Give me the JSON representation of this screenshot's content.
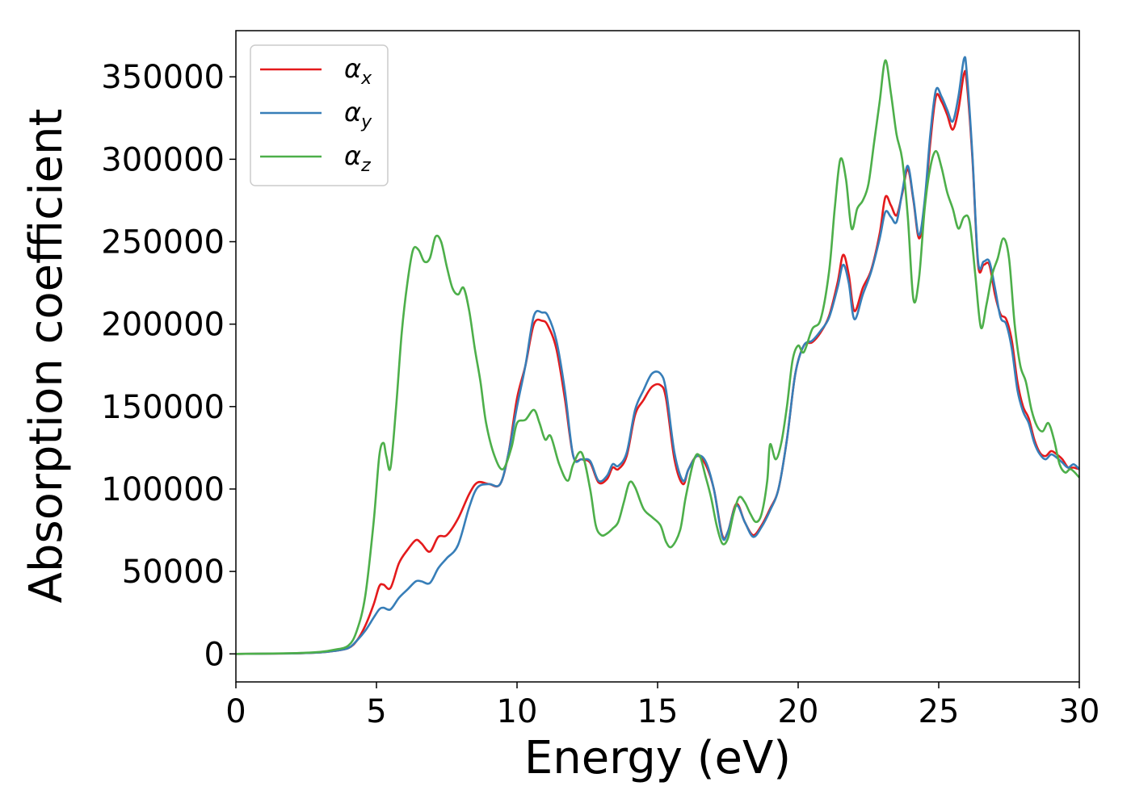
{
  "chart_data": {
    "type": "line",
    "xlabel": "Energy (eV)",
    "ylabel": "Absorption coefficient",
    "xlim": [
      0,
      30
    ],
    "ylim": [
      -17000,
      378000
    ],
    "xticks": [
      0,
      5,
      10,
      15,
      20,
      25,
      30
    ],
    "yticks": [
      0,
      50000,
      100000,
      150000,
      200000,
      250000,
      300000,
      350000
    ],
    "grid": false,
    "legend_position": "top-left",
    "series": [
      {
        "name": "αx",
        "symbol": "α",
        "subscript": "x",
        "color": "#e41a1c",
        "x": [
          0,
          2,
          3,
          3.5,
          4,
          4.3,
          4.6,
          4.9,
          5.1,
          5.25,
          5.5,
          5.8,
          6.1,
          6.4,
          6.6,
          6.9,
          7.2,
          7.5,
          7.9,
          8.3,
          8.6,
          9.0,
          9.4,
          9.7,
          10.0,
          10.3,
          10.6,
          10.9,
          11.1,
          11.4,
          11.7,
          12.0,
          12.3,
          12.6,
          12.9,
          13.2,
          13.4,
          13.6,
          13.9,
          14.2,
          14.5,
          14.8,
          15.1,
          15.3,
          15.6,
          15.9,
          16.1,
          16.4,
          16.7,
          17.0,
          17.3,
          17.5,
          17.8,
          18.1,
          18.4,
          18.7,
          19.0,
          19.3,
          19.6,
          19.9,
          20.2,
          20.5,
          20.8,
          21.1,
          21.4,
          21.6,
          21.8,
          22.0,
          22.3,
          22.6,
          22.9,
          23.1,
          23.3,
          23.5,
          23.7,
          23.9,
          24.1,
          24.3,
          24.5,
          24.7,
          24.9,
          25.1,
          25.3,
          25.5,
          25.7,
          25.9,
          26.0,
          26.2,
          26.4,
          26.6,
          26.8,
          27.0,
          27.2,
          27.4,
          27.6,
          27.8,
          28.0,
          28.2,
          28.4,
          28.6,
          28.8,
          29.0,
          29.2,
          29.4,
          29.6,
          29.8,
          30.0
        ],
        "values": [
          0,
          300,
          900,
          1800,
          3500,
          8000,
          17000,
          30000,
          41000,
          42000,
          40000,
          55000,
          63000,
          69000,
          67000,
          62000,
          71000,
          72000,
          82000,
          97000,
          104000,
          103000,
          103000,
          122000,
          155000,
          175000,
          200000,
          202000,
          199000,
          185000,
          155000,
          120000,
          118000,
          116000,
          104000,
          106000,
          113000,
          112000,
          120000,
          145000,
          154000,
          162000,
          163000,
          155000,
          118000,
          103000,
          112000,
          120000,
          115000,
          100000,
          72000,
          74000,
          91000,
          80000,
          72000,
          78000,
          88000,
          100000,
          130000,
          170000,
          187000,
          189000,
          195000,
          205000,
          225000,
          242000,
          230000,
          208000,
          222000,
          233000,
          255000,
          277000,
          272000,
          266000,
          279000,
          294000,
          275000,
          252000,
          272000,
          310000,
          338000,
          335000,
          327000,
          318000,
          330000,
          352000,
          346000,
          300000,
          236000,
          236000,
          236000,
          218000,
          206000,
          203000,
          190000,
          165000,
          150000,
          143000,
          130000,
          122000,
          120000,
          123000,
          121000,
          118000,
          113000,
          113000,
          112000
        ]
      },
      {
        "name": "αy",
        "symbol": "α",
        "subscript": "y",
        "color": "#377eb8",
        "x": [
          0,
          2,
          3,
          3.5,
          4,
          4.3,
          4.6,
          4.9,
          5.1,
          5.25,
          5.5,
          5.8,
          6.1,
          6.4,
          6.6,
          6.9,
          7.2,
          7.5,
          7.9,
          8.3,
          8.6,
          9.0,
          9.4,
          9.7,
          10.0,
          10.3,
          10.6,
          10.9,
          11.1,
          11.4,
          11.7,
          12.0,
          12.3,
          12.6,
          12.9,
          13.2,
          13.4,
          13.6,
          13.9,
          14.2,
          14.5,
          14.8,
          15.1,
          15.3,
          15.6,
          15.9,
          16.1,
          16.4,
          16.7,
          17.0,
          17.3,
          17.5,
          17.8,
          18.1,
          18.4,
          18.7,
          19.0,
          19.3,
          19.6,
          19.9,
          20.2,
          20.5,
          20.8,
          21.1,
          21.4,
          21.6,
          21.8,
          22.0,
          22.3,
          22.6,
          22.9,
          23.1,
          23.3,
          23.5,
          23.7,
          23.9,
          24.1,
          24.3,
          24.5,
          24.7,
          24.9,
          25.1,
          25.3,
          25.5,
          25.7,
          25.9,
          26.0,
          26.2,
          26.4,
          26.6,
          26.8,
          27.0,
          27.2,
          27.4,
          27.6,
          27.8,
          28.0,
          28.2,
          28.4,
          28.6,
          28.8,
          29.0,
          29.2,
          29.4,
          29.6,
          29.8,
          30.0
        ],
        "values": [
          0,
          300,
          900,
          1800,
          3500,
          8000,
          14000,
          22000,
          27000,
          28000,
          27000,
          34000,
          39000,
          44000,
          44000,
          43000,
          52000,
          58000,
          66000,
          89000,
          101000,
          103000,
          103000,
          122000,
          150000,
          175000,
          205000,
          207000,
          205000,
          190000,
          160000,
          120000,
          118000,
          117000,
          105000,
          108000,
          115000,
          114000,
          122000,
          148000,
          160000,
          170000,
          170000,
          160000,
          122000,
          105000,
          112000,
          120000,
          117000,
          100000,
          71000,
          74000,
          90000,
          80000,
          71000,
          77000,
          87000,
          100000,
          130000,
          170000,
          187000,
          190000,
          196000,
          204000,
          222000,
          236000,
          225000,
          203000,
          218000,
          232000,
          252000,
          268000,
          265000,
          262000,
          280000,
          296000,
          276000,
          254000,
          275000,
          315000,
          342000,
          338000,
          330000,
          323000,
          338000,
          361000,
          352000,
          302000,
          238000,
          238000,
          238000,
          222000,
          204000,
          200000,
          185000,
          160000,
          147000,
          140000,
          128000,
          121000,
          118000,
          121000,
          119000,
          116000,
          113000,
          115000,
          112000
        ]
      },
      {
        "name": "αz",
        "symbol": "α",
        "subscript": "z",
        "color": "#4daf4a",
        "x": [
          0,
          2,
          3,
          3.5,
          4,
          4.3,
          4.6,
          4.9,
          5.1,
          5.25,
          5.35,
          5.5,
          5.7,
          5.9,
          6.1,
          6.3,
          6.5,
          6.7,
          6.9,
          7.1,
          7.3,
          7.5,
          7.7,
          7.9,
          8.1,
          8.3,
          8.5,
          8.7,
          8.9,
          9.2,
          9.5,
          9.8,
          10.0,
          10.3,
          10.6,
          10.8,
          11.0,
          11.2,
          11.5,
          11.8,
          12.0,
          12.3,
          12.6,
          12.8,
          13.0,
          13.2,
          13.4,
          13.6,
          13.8,
          14.0,
          14.2,
          14.5,
          14.8,
          15.1,
          15.3,
          15.5,
          15.8,
          16.0,
          16.3,
          16.5,
          16.7,
          16.9,
          17.1,
          17.3,
          17.5,
          17.7,
          17.9,
          18.1,
          18.3,
          18.5,
          18.7,
          18.9,
          19.0,
          19.2,
          19.4,
          19.6,
          19.8,
          20.0,
          20.2,
          20.5,
          20.8,
          21.1,
          21.3,
          21.5,
          21.7,
          21.9,
          22.1,
          22.3,
          22.5,
          22.7,
          22.9,
          23.1,
          23.3,
          23.5,
          23.7,
          23.9,
          24.1,
          24.3,
          24.5,
          24.7,
          24.9,
          25.1,
          25.3,
          25.5,
          25.7,
          25.9,
          26.1,
          26.3,
          26.5,
          26.7,
          26.9,
          27.1,
          27.3,
          27.5,
          27.7,
          27.9,
          28.1,
          28.3,
          28.5,
          28.7,
          28.9,
          29.1,
          29.3,
          29.5,
          29.7,
          30.0
        ],
        "values": [
          0,
          400,
          1200,
          2500,
          5000,
          14000,
          35000,
          80000,
          120000,
          128000,
          120000,
          113000,
          150000,
          195000,
          225000,
          245000,
          245000,
          238000,
          240000,
          253000,
          250000,
          235000,
          222000,
          218000,
          222000,
          208000,
          185000,
          165000,
          140000,
          120000,
          112000,
          125000,
          140000,
          142000,
          148000,
          140000,
          130000,
          132000,
          115000,
          105000,
          115000,
          122000,
          100000,
          78000,
          72000,
          73000,
          76000,
          80000,
          92000,
          104000,
          101000,
          88000,
          83000,
          78000,
          68000,
          65000,
          75000,
          95000,
          118000,
          120000,
          108000,
          95000,
          78000,
          67000,
          70000,
          85000,
          95000,
          92000,
          85000,
          80000,
          85000,
          105000,
          127000,
          118000,
          128000,
          150000,
          178000,
          187000,
          183000,
          197000,
          203000,
          232000,
          270000,
          300000,
          288000,
          258000,
          270000,
          275000,
          285000,
          310000,
          335000,
          360000,
          340000,
          315000,
          300000,
          265000,
          215000,
          228000,
          270000,
          295000,
          305000,
          295000,
          280000,
          270000,
          258000,
          265000,
          262000,
          230000,
          198000,
          212000,
          230000,
          240000,
          252000,
          240000,
          200000,
          175000,
          165000,
          148000,
          138000,
          135000,
          140000,
          130000,
          115000,
          110000,
          112000,
          107000
        ]
      }
    ]
  }
}
